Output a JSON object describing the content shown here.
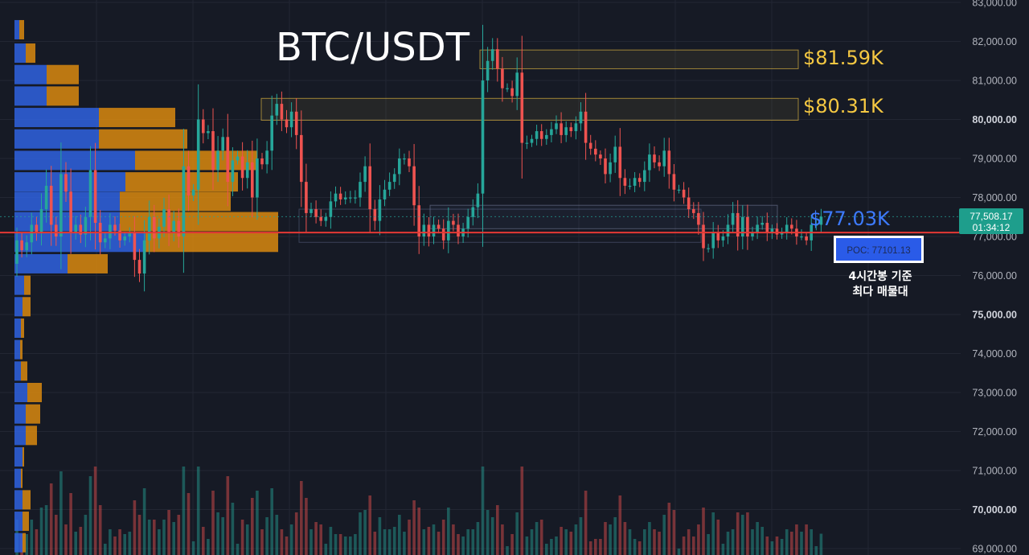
{
  "chart_data": {
    "type": "candlestick",
    "title": "BTC/USDT",
    "y_axis": {
      "ticks": [
        "83,000.00",
        "82,000.00",
        "81,000.00",
        "80,000.00",
        "79,000.00",
        "78,000.00",
        "77,000.00",
        "76,000.00",
        "75,000.00",
        "74,000.00",
        "73,000.00",
        "72,000.00",
        "71,000.00",
        "70,000.00",
        "69,000.00"
      ],
      "tick_values": [
        83000,
        82000,
        81000,
        80000,
        79000,
        78000,
        77000,
        76000,
        75000,
        74000,
        73000,
        72000,
        71000,
        70000,
        69000
      ],
      "bold_ticks": [
        "80,000.00",
        "75,000.00",
        "70,000.00"
      ],
      "ylim": [
        68900,
        83050
      ]
    },
    "current_price": {
      "value": 77508.17,
      "label": "77,508.17",
      "countdown": "01:34:12"
    },
    "poc": {
      "value": 77101.13,
      "label": "POC: 77101.13",
      "note_line1": "4시간봉 기준",
      "note_line2": "최다 매물대"
    },
    "annotations": [
      {
        "label": "$81.59K",
        "price_low": 81300,
        "price_high": 81780
      },
      {
        "label": "$80.31K",
        "price_low": 79980,
        "price_high": 80540
      },
      {
        "label": "$77.03K",
        "price": 77030
      }
    ],
    "candles_close": [
      76900,
      76650,
      76850,
      77300,
      77100,
      77700,
      78300,
      77300,
      77000,
      78600,
      78150,
      77100,
      77300,
      77050,
      77500,
      78700,
      77350,
      76850,
      76950,
      77300,
      77150,
      76900,
      77000,
      77100,
      76400,
      76050,
      76900,
      77500,
      76950,
      77250,
      77700,
      77100,
      77400,
      77000,
      78800,
      78050,
      78200,
      80000,
      79650,
      79700,
      78700,
      79200,
      79550,
      78400,
      78950,
      79050,
      78500,
      78900,
      78000,
      79000,
      78850,
      79200,
      80100,
      80400,
      80000,
      79800,
      80200,
      79600,
      78400,
      77600,
      77700,
      77500,
      77400,
      77500,
      77900,
      78100,
      77950,
      78000,
      78000,
      78000,
      78400,
      78800,
      77700,
      77400,
      77950,
      78200,
      78400,
      78600,
      79000,
      79000,
      78800,
      77800,
      77000,
      77300,
      77000,
      77300,
      77200,
      76900,
      77400,
      77300,
      77000,
      77200,
      77500,
      77750,
      78100,
      81000,
      81500,
      81800,
      81300,
      80800,
      80800,
      80600,
      81200,
      79400,
      79400,
      79500,
      79700,
      79500,
      79600,
      79750,
      79900,
      79600,
      79800,
      79700,
      79900,
      80200,
      79400,
      79250,
      79100,
      79000,
      78600,
      78900,
      79300,
      78500,
      78300,
      78300,
      78500,
      78400,
      78700,
      79100,
      78900,
      78800,
      79200,
      78600,
      78200,
      78200,
      78000,
      77700,
      77600,
      77300,
      76700,
      76700,
      77100,
      76900,
      77000,
      77300,
      77600,
      77000,
      77500,
      77000,
      77100,
      77300,
      77350,
      77100,
      77200,
      77050,
      77100,
      77300,
      77200,
      77000,
      77000,
      76900,
      77300,
      77300,
      77508.17
    ],
    "volume_profile": [
      {
        "price": 82300,
        "buy": 6,
        "sell": 6
      },
      {
        "price": 81700,
        "buy": 14,
        "sell": 12
      },
      {
        "price": 81150,
        "buy": 40,
        "sell": 40
      },
      {
        "price": 80600,
        "buy": 40,
        "sell": 40
      },
      {
        "price": 80050,
        "buy": 105,
        "sell": 95
      },
      {
        "price": 79500,
        "buy": 105,
        "sell": 110
      },
      {
        "price": 78950,
        "buy": 150,
        "sell": 152
      },
      {
        "price": 78400,
        "buy": 138,
        "sell": 140
      },
      {
        "price": 77900,
        "buy": 131,
        "sell": 138
      },
      {
        "price": 77380,
        "buy": 131,
        "sell": 197
      },
      {
        "price": 76850,
        "buy": 163,
        "sell": 165
      },
      {
        "price": 76300,
        "buy": 66,
        "sell": 50
      },
      {
        "price": 75750,
        "buy": 12,
        "sell": 8
      },
      {
        "price": 75200,
        "buy": 10,
        "sell": 10
      },
      {
        "price": 74650,
        "buy": 8,
        "sell": 4
      },
      {
        "price": 74100,
        "buy": 7,
        "sell": 3
      },
      {
        "price": 73550,
        "buy": 8,
        "sell": 8
      },
      {
        "price": 73000,
        "buy": 16,
        "sell": 18
      },
      {
        "price": 72450,
        "buy": 14,
        "sell": 18
      },
      {
        "price": 71900,
        "buy": 14,
        "sell": 14
      },
      {
        "price": 71350,
        "buy": 10,
        "sell": 2
      },
      {
        "price": 70800,
        "buy": 8,
        "sell": 2
      },
      {
        "price": 70250,
        "buy": 10,
        "sell": 10
      },
      {
        "price": 69700,
        "buy": 10,
        "sell": 8
      },
      {
        "price": 69150,
        "buy": 10,
        "sell": 4
      }
    ]
  },
  "colors": {
    "background": "#161a25",
    "grid": "#222633",
    "up": "#26a69a",
    "down": "#ef5350",
    "vp_buy": "#2f63e0",
    "vp_sell": "#d98a0f",
    "poc_line": "#e53935",
    "zone": "#f5c842",
    "current_tag": "#1e9e8c"
  }
}
